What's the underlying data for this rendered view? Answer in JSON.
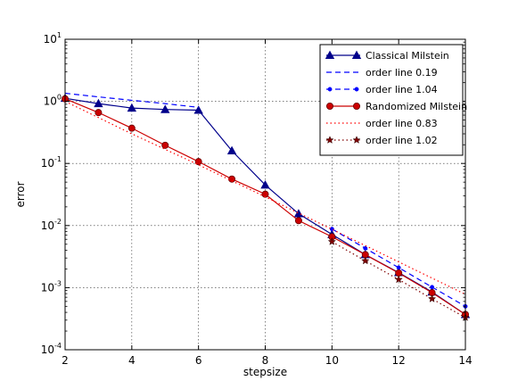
{
  "chart_data": {
    "type": "line",
    "title": "",
    "xlabel": "stepsize",
    "ylabel": "error",
    "xlim": [
      2,
      14
    ],
    "ylim": [
      0.0001,
      10
    ],
    "yscale": "log",
    "grid": true,
    "legend_position": "top-right",
    "x_ticks": [
      2,
      4,
      6,
      8,
      10,
      12,
      14
    ],
    "x_tick_labels": [
      "2",
      "4",
      "6",
      "8",
      "10",
      "12",
      "14"
    ],
    "y_ticks": [
      0.0001,
      0.001,
      0.01,
      0.1,
      1,
      10
    ],
    "y_tick_labels": [
      {
        "base": "10",
        "exp": "-4"
      },
      {
        "base": "10",
        "exp": "-3"
      },
      {
        "base": "10",
        "exp": "-2"
      },
      {
        "base": "10",
        "exp": "-1"
      },
      {
        "base": "10",
        "exp": "0"
      },
      {
        "base": "10",
        "exp": "1"
      }
    ],
    "series": [
      {
        "name": "Classical Milstein",
        "color": "#00008b",
        "style": "solid",
        "marker": "triangle",
        "x": [
          2,
          3,
          4,
          5,
          6,
          7,
          8,
          9,
          10,
          11,
          12,
          13,
          14
        ],
        "y": [
          1.12,
          0.92,
          0.78,
          0.74,
          0.72,
          0.16,
          0.045,
          0.0155,
          0.0072,
          0.0034,
          0.00175,
          0.00085,
          0.00037
        ]
      },
      {
        "name": "order line 0.19",
        "color": "#0000ff",
        "style": "dashed",
        "marker": "none",
        "x": [
          2,
          3,
          4,
          5,
          6
        ],
        "y": [
          1.35,
          1.18,
          1.04,
          0.92,
          0.8
        ]
      },
      {
        "name": "order line 1.04",
        "color": "#0000ff",
        "style": "dashed",
        "marker": "dot",
        "x": [
          10,
          11,
          12,
          13,
          14
        ],
        "y": [
          0.0088,
          0.0043,
          0.0021,
          0.00102,
          0.0005
        ]
      },
      {
        "name": "Randomized Milstein",
        "color": "#cc0000",
        "style": "solid",
        "marker": "circle",
        "x": [
          2,
          3,
          4,
          5,
          6,
          7,
          8,
          9,
          10,
          11,
          12,
          13,
          14
        ],
        "y": [
          1.1,
          0.66,
          0.37,
          0.196,
          0.107,
          0.056,
          0.032,
          0.012,
          0.0066,
          0.0034,
          0.00172,
          0.00083,
          0.00037
        ]
      },
      {
        "name": "order line 0.83",
        "color": "#ff0000",
        "style": "dotted",
        "marker": "none",
        "x": [
          2,
          4,
          6,
          8,
          10,
          12,
          14
        ],
        "y": [
          1.0,
          0.3,
          0.095,
          0.029,
          0.0087,
          0.0026,
          0.00078
        ]
      },
      {
        "name": "order line 1.02",
        "color": "#800000",
        "style": "dotted",
        "marker": "star",
        "x": [
          10,
          11,
          12,
          13,
          14
        ],
        "y": [
          0.0055,
          0.0027,
          0.00135,
          0.00066,
          0.00033
        ]
      }
    ]
  }
}
